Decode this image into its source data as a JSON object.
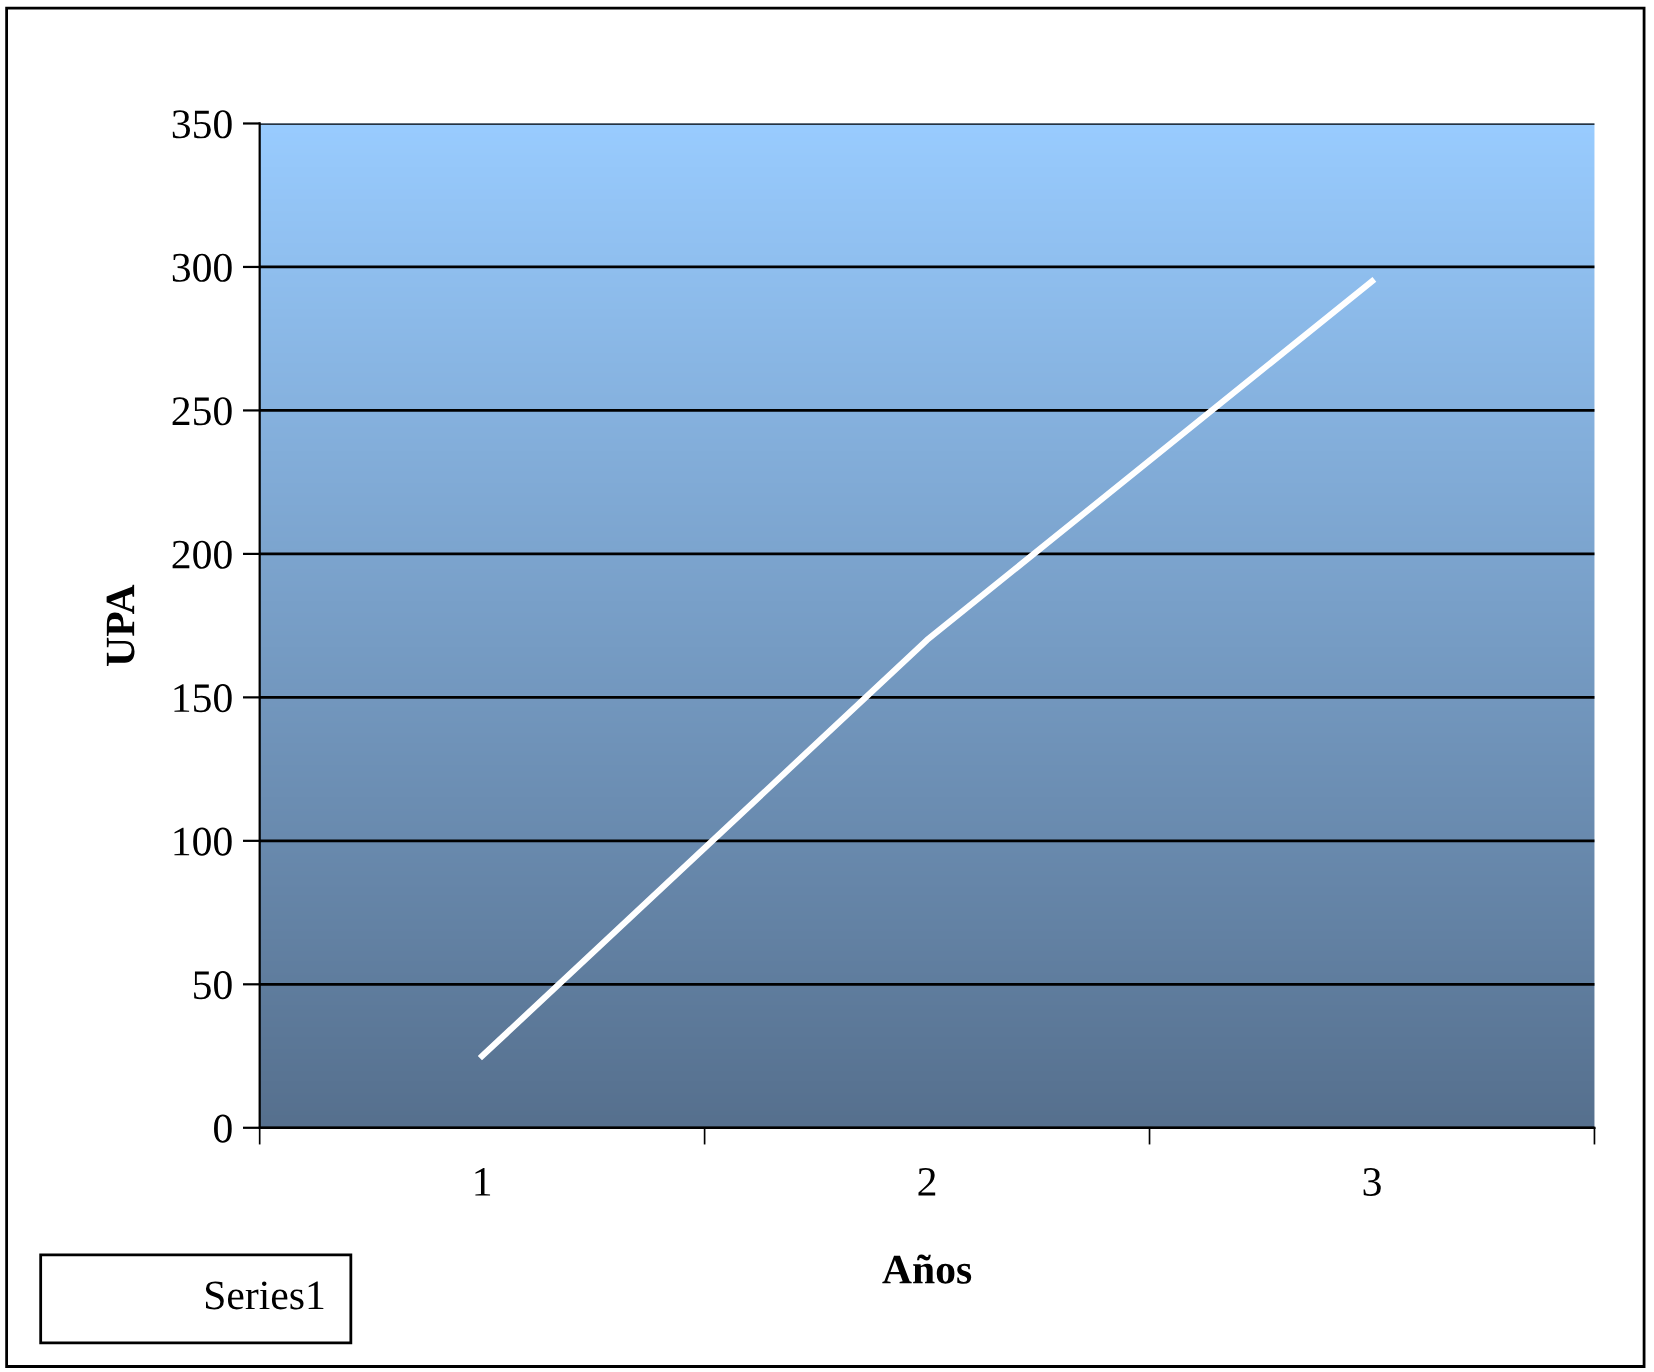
{
  "chart_data": {
    "type": "line",
    "xlabel": "Años",
    "ylabel": "UPA",
    "categories": [
      "1",
      "2",
      "3"
    ],
    "series": [
      {
        "name": "Series1",
        "color": "#ffffff",
        "values": [
          25,
          170,
          295
        ]
      }
    ],
    "ylim": [
      0,
      350
    ],
    "yticks": [
      0,
      50,
      100,
      150,
      200,
      250,
      300,
      350
    ],
    "grid": "y",
    "legend": "bottom left",
    "marker": "none",
    "line_style": "solid"
  }
}
